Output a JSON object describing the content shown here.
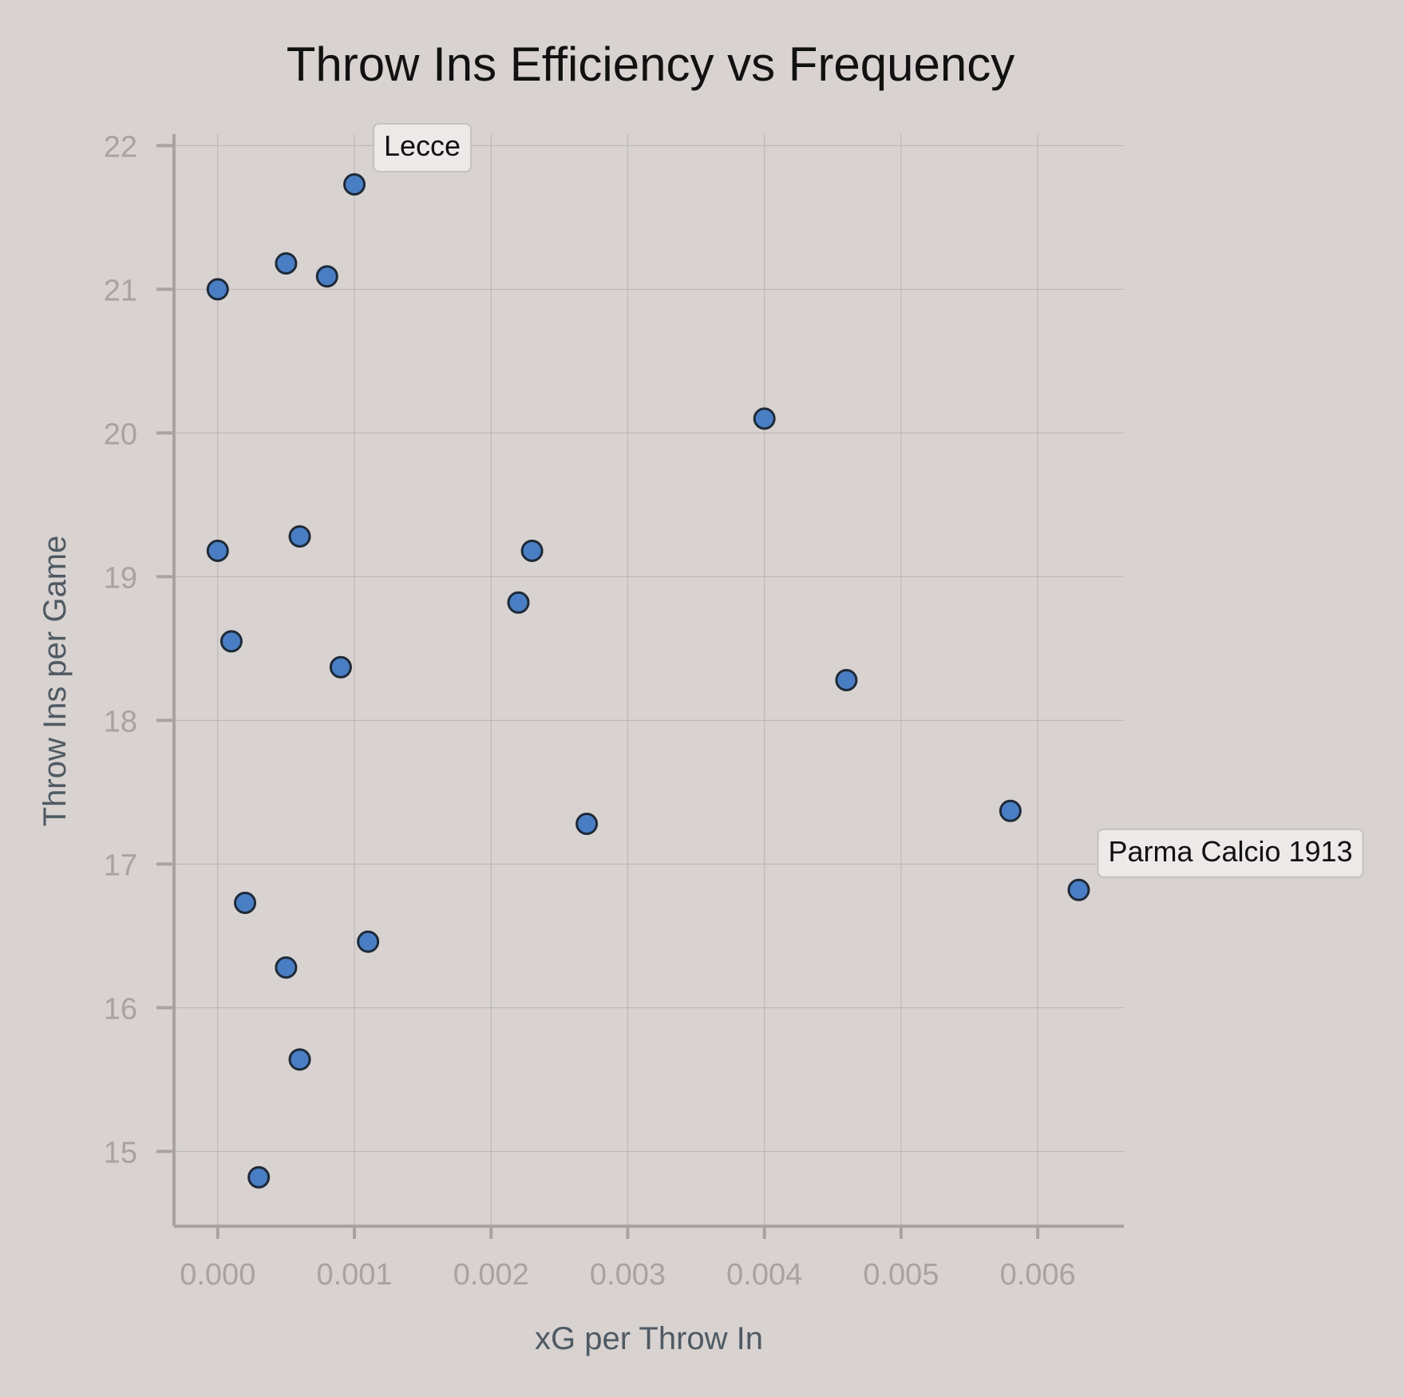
{
  "chart_data": {
    "type": "scatter",
    "title": "Throw Ins Efficiency vs Frequency",
    "xlabel": "xG per Throw In",
    "ylabel": "Throw Ins per Game",
    "xlim": [
      -0.00032,
      0.00663
    ],
    "ylim": [
      14.48,
      22.08
    ],
    "xticks": [
      0.0,
      0.001,
      0.002,
      0.003,
      0.004,
      0.005,
      0.006
    ],
    "xtick_labels": [
      "0.000",
      "0.001",
      "0.002",
      "0.003",
      "0.004",
      "0.005",
      "0.006"
    ],
    "yticks": [
      15,
      16,
      17,
      18,
      19,
      20,
      21,
      22
    ],
    "ytick_labels": [
      "15",
      "16",
      "17",
      "18",
      "19",
      "20",
      "21",
      "22"
    ],
    "grid": true,
    "marker_color": "#4a7ec4",
    "marker_edge_color": "#1e2a38",
    "points": [
      {
        "x": 0.001,
        "y": 21.73
      },
      {
        "x": 0.0005,
        "y": 21.18
      },
      {
        "x": 0.0008,
        "y": 21.09
      },
      {
        "x": 0.0,
        "y": 21.0
      },
      {
        "x": 0.004,
        "y": 20.1
      },
      {
        "x": 0.0006,
        "y": 19.28
      },
      {
        "x": 0.0,
        "y": 19.18
      },
      {
        "x": 0.0023,
        "y": 19.18
      },
      {
        "x": 0.0022,
        "y": 18.82
      },
      {
        "x": 0.0001,
        "y": 18.55
      },
      {
        "x": 0.0009,
        "y": 18.37
      },
      {
        "x": 0.0046,
        "y": 18.28
      },
      {
        "x": 0.0058,
        "y": 17.37
      },
      {
        "x": 0.0027,
        "y": 17.28
      },
      {
        "x": 0.0063,
        "y": 16.82
      },
      {
        "x": 0.0002,
        "y": 16.73
      },
      {
        "x": 0.0011,
        "y": 16.46
      },
      {
        "x": 0.0005,
        "y": 16.28
      },
      {
        "x": 0.0006,
        "y": 15.64
      },
      {
        "x": 0.0003,
        "y": 14.82
      }
    ],
    "annotations": [
      {
        "text": "Lecce",
        "x": 0.001,
        "y": 21.73
      },
      {
        "text": "Parma Calcio 1913",
        "x": 0.0063,
        "y": 16.82
      }
    ]
  }
}
